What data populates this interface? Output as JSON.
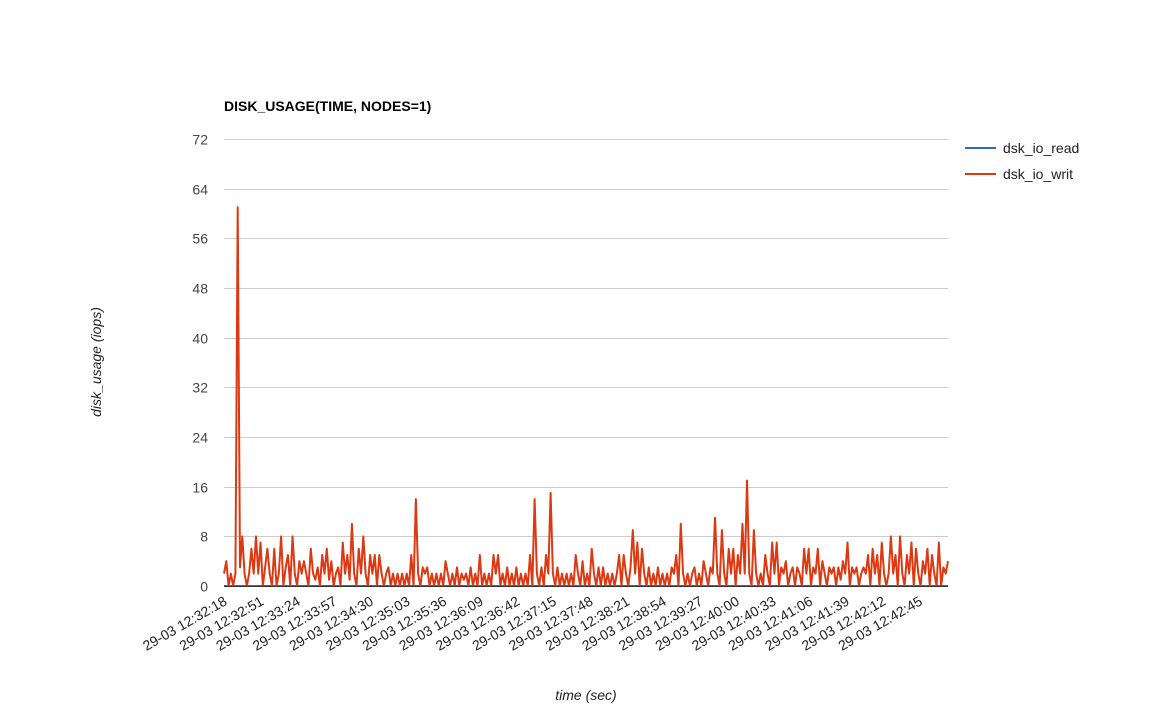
{
  "chart_data": {
    "type": "line",
    "title": "DISK_USAGE(TIME, NODES=1)",
    "xlabel": "time (sec)",
    "ylabel": "disk_usage (iops)",
    "ylim": [
      0,
      72
    ],
    "yticks": [
      0,
      8,
      16,
      24,
      32,
      40,
      48,
      56,
      64,
      72
    ],
    "grid": true,
    "legend_position": "right",
    "x_tick_labels": [
      "29-03 12:32:18",
      "29-03 12:32:51",
      "29-03 12:33:24",
      "29-03 12:33:57",
      "29-03 12:34:30",
      "29-03 12:35:03",
      "29-03 12:35:36",
      "29-03 12:36:09",
      "29-03 12:36:42",
      "29-03 12:37:15",
      "29-03 12:37:48",
      "29-03 12:38:21",
      "29-03 12:38:54",
      "29-03 12:39:27",
      "29-03 12:40:00",
      "29-03 12:40:33",
      "29-03 12:41:06",
      "29-03 12:41:39",
      "29-03 12:42:12",
      "29-03 12:42:45"
    ],
    "series": [
      {
        "name": "dsk_io_read",
        "color": "#3366cc",
        "values": [
          0,
          0,
          0,
          0,
          0,
          0,
          0,
          0,
          0,
          0,
          0,
          0,
          0,
          0,
          0,
          0,
          0,
          0,
          0,
          0,
          0,
          0,
          0,
          0,
          0,
          0,
          0,
          0,
          0,
          0,
          0,
          0,
          0,
          0,
          0,
          0,
          0,
          0,
          0,
          0,
          0,
          0,
          0,
          0,
          0,
          0,
          0,
          0,
          0,
          0,
          0,
          0,
          0,
          0,
          0,
          0,
          0,
          0,
          0,
          0,
          0,
          0,
          0,
          0,
          0,
          0,
          0,
          0,
          0,
          0,
          0,
          0,
          0,
          0,
          0,
          0,
          0,
          0,
          0,
          0,
          0,
          0,
          0,
          0,
          0,
          0,
          0,
          0,
          0,
          0,
          0,
          0,
          0,
          0,
          0,
          0,
          0,
          0,
          0,
          0,
          0,
          0,
          0,
          0,
          0,
          0,
          0,
          0,
          0,
          0,
          0,
          0,
          0,
          0,
          0,
          0,
          0,
          0,
          0,
          0,
          0,
          0,
          0,
          0,
          0,
          0,
          0,
          0,
          0,
          0,
          0,
          0,
          0,
          0,
          0,
          0,
          0,
          0,
          0,
          0,
          0,
          0,
          0,
          0,
          0,
          0,
          0,
          0,
          0,
          0,
          0,
          0,
          0,
          0,
          0,
          0,
          0,
          0,
          0,
          0,
          0,
          0,
          0,
          0,
          0,
          0,
          0,
          0,
          0,
          0,
          0,
          0,
          0,
          0,
          0,
          0,
          0,
          0,
          0,
          0,
          0,
          0,
          0,
          0,
          0,
          0,
          0,
          0,
          0,
          0,
          0,
          0,
          0,
          0,
          0,
          0,
          0,
          0,
          0,
          0,
          0,
          0,
          0,
          0,
          0,
          0,
          0,
          0,
          0,
          0,
          0,
          0,
          0,
          0,
          0,
          0,
          0,
          0,
          0,
          0,
          0,
          0,
          0,
          0,
          0,
          0,
          0,
          0,
          0,
          0,
          0,
          0,
          0,
          0,
          0,
          0,
          0,
          0,
          0,
          0,
          0,
          0,
          0,
          0,
          0,
          0,
          0,
          0,
          0,
          0,
          0,
          0,
          0,
          0,
          0,
          0,
          0,
          0,
          0,
          0,
          0,
          0,
          0,
          0,
          0,
          0,
          0,
          0,
          0,
          0,
          0,
          0,
          0,
          0,
          0,
          0,
          0,
          0,
          0,
          0,
          0,
          0,
          0,
          0,
          0,
          0,
          0
        ]
      },
      {
        "name": "dsk_io_writ",
        "color": "#dc3912",
        "values": [
          2,
          4,
          0,
          2,
          0,
          2,
          61,
          3,
          8,
          2,
          0,
          2,
          6,
          2,
          8,
          2,
          7,
          0,
          3,
          6,
          2,
          0,
          6,
          0,
          2,
          8,
          0,
          3,
          5,
          0,
          8,
          2,
          0,
          4,
          2,
          4,
          2,
          0,
          6,
          2,
          1,
          3,
          0,
          5,
          2,
          6,
          1,
          4,
          0,
          2,
          3,
          0,
          7,
          2,
          5,
          1,
          10,
          2,
          0,
          6,
          2,
          8,
          2,
          0,
          5,
          2,
          5,
          0,
          5,
          2,
          0,
          2,
          3,
          0,
          2,
          0,
          2,
          0,
          2,
          0,
          2,
          0,
          5,
          0,
          14,
          2,
          0,
          3,
          2,
          3,
          0,
          2,
          0,
          2,
          0,
          2,
          0,
          4,
          2,
          0,
          2,
          0,
          3,
          0,
          2,
          1,
          2,
          0,
          3,
          0,
          2,
          0,
          5,
          0,
          2,
          0,
          2,
          0,
          5,
          2,
          5,
          0,
          2,
          0,
          3,
          0,
          2,
          0,
          3,
          0,
          2,
          0,
          2,
          0,
          5,
          0,
          14,
          2,
          0,
          3,
          0,
          5,
          2,
          15,
          2,
          0,
          3,
          0,
          2,
          0,
          2,
          0,
          2,
          0,
          5,
          2,
          0,
          4,
          0,
          2,
          0,
          6,
          2,
          0,
          3,
          0,
          3,
          0,
          2,
          0,
          2,
          0,
          2,
          5,
          0,
          5,
          2,
          0,
          3,
          9,
          2,
          7,
          0,
          6,
          2,
          0,
          3,
          0,
          2,
          0,
          3,
          0,
          2,
          0,
          2,
          0,
          3,
          2,
          5,
          0,
          10,
          2,
          0,
          2,
          0,
          2,
          3,
          0,
          2,
          0,
          4,
          2,
          0,
          3,
          2,
          11,
          2,
          0,
          9,
          2,
          0,
          6,
          2,
          6,
          0,
          5,
          2,
          10,
          2,
          17,
          2,
          0,
          9,
          2,
          0,
          2,
          0,
          5,
          2,
          0,
          7,
          2,
          7,
          0,
          3,
          2,
          4,
          0,
          2,
          3,
          0,
          3,
          2,
          0,
          6,
          2,
          6,
          0,
          3,
          2,
          6,
          0,
          4,
          2,
          0,
          3,
          2,
          3,
          0,
          3,
          1,
          4,
          2,
          7,
          0,
          3,
          2,
          3,
          0,
          2,
          3,
          2,
          5,
          0,
          6,
          2,
          5,
          0,
          7,
          2,
          0,
          2,
          8,
          2,
          5,
          0,
          8,
          2,
          0,
          5,
          2,
          7,
          0,
          6,
          2,
          0,
          4,
          2,
          6,
          0,
          5,
          2,
          0,
          7,
          0,
          3,
          2,
          4
        ]
      }
    ]
  }
}
